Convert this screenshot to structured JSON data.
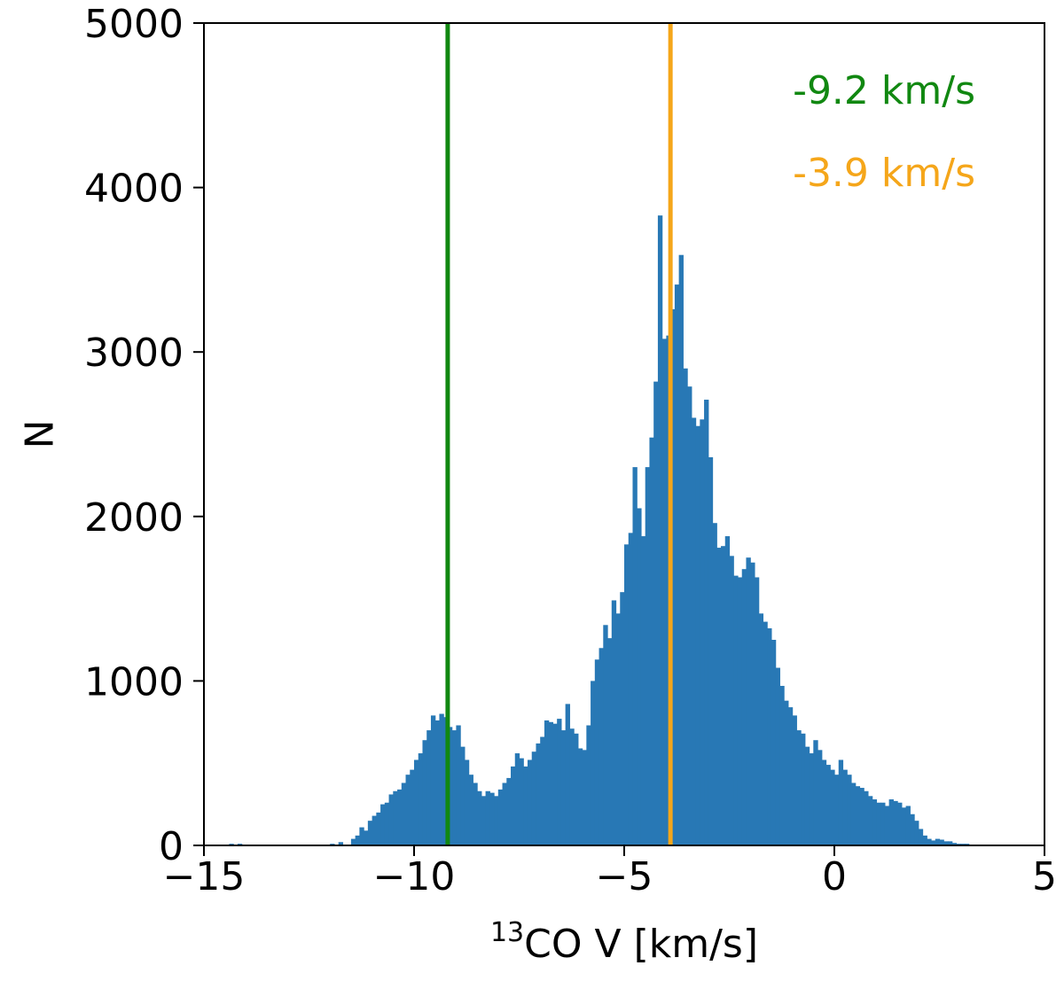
{
  "chart_data": {
    "type": "bar",
    "title": "",
    "xlabel_sup": "13",
    "xlabel": "CO V [km/s]",
    "ylabel": "N",
    "xlim": [
      -15,
      5
    ],
    "ylim": [
      0,
      5000
    ],
    "xticks": [
      -15,
      -10,
      -5,
      0,
      5
    ],
    "xtick_labels": [
      "−15",
      "−10",
      "−5",
      "0",
      "5"
    ],
    "yticks": [
      0,
      1000,
      2000,
      3000,
      4000,
      5000
    ],
    "ytick_labels": [
      "0",
      "1000",
      "2000",
      "3000",
      "4000",
      "5000"
    ],
    "grid": false,
    "bar_color": "#2878b5",
    "bin_width": 0.1,
    "bins": [
      [
        -15.0,
        5
      ],
      [
        -14.8,
        5
      ],
      [
        -14.4,
        10
      ],
      [
        -14.2,
        10
      ],
      [
        -13.9,
        5
      ],
      [
        -13.5,
        5
      ],
      [
        -13.2,
        5
      ],
      [
        -12.8,
        5
      ],
      [
        -12.4,
        5
      ],
      [
        -12.0,
        10
      ],
      [
        -11.8,
        20
      ],
      [
        -11.5,
        40
      ],
      [
        -11.4,
        60
      ],
      [
        -11.3,
        110
      ],
      [
        -11.2,
        90
      ],
      [
        -11.1,
        150
      ],
      [
        -11.0,
        180
      ],
      [
        -10.9,
        200
      ],
      [
        -10.8,
        250
      ],
      [
        -10.7,
        260
      ],
      [
        -10.6,
        310
      ],
      [
        -10.5,
        330
      ],
      [
        -10.4,
        340
      ],
      [
        -10.3,
        380
      ],
      [
        -10.2,
        430
      ],
      [
        -10.1,
        460
      ],
      [
        -10.0,
        520
      ],
      [
        -9.9,
        560
      ],
      [
        -9.8,
        640
      ],
      [
        -9.7,
        700
      ],
      [
        -9.6,
        790
      ],
      [
        -9.5,
        760
      ],
      [
        -9.4,
        800
      ],
      [
        -9.3,
        780
      ],
      [
        -9.2,
        720
      ],
      [
        -9.1,
        700
      ],
      [
        -9.0,
        730
      ],
      [
        -8.9,
        600
      ],
      [
        -8.8,
        520
      ],
      [
        -8.7,
        430
      ],
      [
        -8.6,
        380
      ],
      [
        -8.5,
        330
      ],
      [
        -8.4,
        300
      ],
      [
        -8.3,
        330
      ],
      [
        -8.2,
        320
      ],
      [
        -8.1,
        300
      ],
      [
        -8.0,
        340
      ],
      [
        -7.9,
        380
      ],
      [
        -7.8,
        410
      ],
      [
        -7.7,
        480
      ],
      [
        -7.6,
        560
      ],
      [
        -7.5,
        530
      ],
      [
        -7.4,
        480
      ],
      [
        -7.3,
        520
      ],
      [
        -7.2,
        570
      ],
      [
        -7.1,
        620
      ],
      [
        -7.0,
        660
      ],
      [
        -6.9,
        760
      ],
      [
        -6.8,
        750
      ],
      [
        -6.7,
        740
      ],
      [
        -6.6,
        770
      ],
      [
        -6.5,
        700
      ],
      [
        -6.4,
        860
      ],
      [
        -6.3,
        710
      ],
      [
        -6.2,
        680
      ],
      [
        -6.1,
        590
      ],
      [
        -6.0,
        580
      ],
      [
        -5.9,
        730
      ],
      [
        -5.8,
        1000
      ],
      [
        -5.7,
        1130
      ],
      [
        -5.6,
        1200
      ],
      [
        -5.5,
        1340
      ],
      [
        -5.4,
        1260
      ],
      [
        -5.3,
        1490
      ],
      [
        -5.2,
        1410
      ],
      [
        -5.1,
        1540
      ],
      [
        -5.0,
        1830
      ],
      [
        -4.9,
        1900
      ],
      [
        -4.8,
        2300
      ],
      [
        -4.7,
        2050
      ],
      [
        -4.6,
        1880
      ],
      [
        -4.5,
        2300
      ],
      [
        -4.4,
        2480
      ],
      [
        -4.3,
        2820
      ],
      [
        -4.2,
        3830
      ],
      [
        -4.1,
        3080
      ],
      [
        -4.0,
        3100
      ],
      [
        -3.9,
        3260
      ],
      [
        -3.8,
        3410
      ],
      [
        -3.7,
        3590
      ],
      [
        -3.6,
        2900
      ],
      [
        -3.5,
        2790
      ],
      [
        -3.4,
        2600
      ],
      [
        -3.3,
        2550
      ],
      [
        -3.2,
        2590
      ],
      [
        -3.1,
        2710
      ],
      [
        -3.0,
        2360
      ],
      [
        -2.9,
        1960
      ],
      [
        -2.8,
        1810
      ],
      [
        -2.7,
        1820
      ],
      [
        -2.6,
        1880
      ],
      [
        -2.5,
        1760
      ],
      [
        -2.4,
        1640
      ],
      [
        -2.3,
        1630
      ],
      [
        -2.2,
        1680
      ],
      [
        -2.1,
        1750
      ],
      [
        -2.0,
        1720
      ],
      [
        -1.9,
        1630
      ],
      [
        -1.8,
        1410
      ],
      [
        -1.7,
        1360
      ],
      [
        -1.6,
        1320
      ],
      [
        -1.5,
        1250
      ],
      [
        -1.4,
        1080
      ],
      [
        -1.3,
        970
      ],
      [
        -1.2,
        880
      ],
      [
        -1.1,
        840
      ],
      [
        -1.0,
        790
      ],
      [
        -0.9,
        700
      ],
      [
        -0.8,
        680
      ],
      [
        -0.7,
        600
      ],
      [
        -0.6,
        560
      ],
      [
        -0.5,
        640
      ],
      [
        -0.4,
        580
      ],
      [
        -0.3,
        520
      ],
      [
        -0.2,
        490
      ],
      [
        -0.1,
        460
      ],
      [
        0.0,
        430
      ],
      [
        0.1,
        520
      ],
      [
        0.2,
        460
      ],
      [
        0.3,
        430
      ],
      [
        0.4,
        380
      ],
      [
        0.5,
        360
      ],
      [
        0.6,
        350
      ],
      [
        0.7,
        330
      ],
      [
        0.8,
        300
      ],
      [
        0.9,
        280
      ],
      [
        1.0,
        260
      ],
      [
        1.1,
        260
      ],
      [
        1.2,
        240
      ],
      [
        1.3,
        280
      ],
      [
        1.4,
        270
      ],
      [
        1.5,
        260
      ],
      [
        1.6,
        230
      ],
      [
        1.7,
        240
      ],
      [
        1.8,
        190
      ],
      [
        1.9,
        150
      ],
      [
        2.0,
        100
      ],
      [
        2.1,
        60
      ],
      [
        2.2,
        40
      ],
      [
        2.3,
        30
      ],
      [
        2.4,
        40
      ],
      [
        2.5,
        35
      ],
      [
        2.6,
        25
      ],
      [
        2.7,
        25
      ],
      [
        2.8,
        15
      ],
      [
        2.9,
        10
      ],
      [
        3.0,
        10
      ],
      [
        3.1,
        10
      ],
      [
        3.2,
        5
      ],
      [
        3.4,
        5
      ],
      [
        3.8,
        5
      ],
      [
        4.2,
        5
      ],
      [
        4.6,
        5
      ]
    ],
    "vlines": [
      {
        "x": -9.2,
        "color": "#118811",
        "label": "-9.2 km/s"
      },
      {
        "x": -3.9,
        "color": "#f5a61a",
        "label": "-3.9 km/s"
      }
    ]
  }
}
